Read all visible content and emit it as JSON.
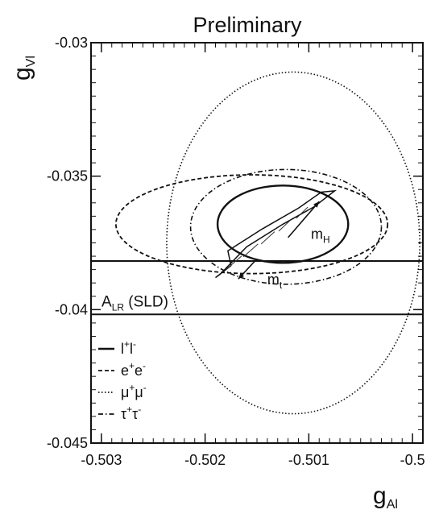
{
  "chart_data": {
    "type": "contour",
    "title": "Preliminary",
    "xlabel": "g",
    "xlabel_sub": "Al",
    "ylabel": "g",
    "ylabel_sub": "Vl",
    "xlim": [
      -0.5031,
      -0.4999
    ],
    "ylim": [
      -0.045,
      -0.03
    ],
    "x_ticks": [
      -0.503,
      -0.502,
      -0.501,
      -0.5
    ],
    "x_tick_labels": [
      "-0.503",
      "-0.502",
      "-0.501",
      "-0.5"
    ],
    "y_ticks": [
      -0.045,
      -0.04,
      -0.035,
      -0.03
    ],
    "y_tick_labels": [
      "-0.045",
      "-0.04",
      "-0.035",
      "-0.03"
    ],
    "ellipses": [
      {
        "name": "l+l-",
        "cx": -0.50125,
        "cy": -0.0368,
        "rx": 0.00063,
        "ry": 0.00145,
        "style": "solid",
        "width": 2.4
      },
      {
        "name": "e+e-",
        "cx": -0.50155,
        "cy": -0.0368,
        "rx": 0.00131,
        "ry": 0.00185,
        "style": "dashed",
        "width": 1.8
      },
      {
        "name": "mu+mu-",
        "cx": -0.50115,
        "cy": -0.0375,
        "rx": 0.00122,
        "ry": 0.0064,
        "style": "dotted",
        "width": 1.6
      },
      {
        "name": "tau+tau-",
        "cx": -0.50122,
        "cy": -0.0369,
        "rx": 0.00092,
        "ry": 0.00215,
        "style": "dashdot",
        "width": 1.6
      }
    ],
    "alr_band": {
      "label": "A",
      "label_sub": "LR",
      "label_suffix": "(SLD)",
      "y_top": -0.03818,
      "y_bottom": -0.04018
    },
    "sm_band": {
      "outline": [
        [
          -0.50185,
          -0.03866
        ],
        [
          -0.5016,
          -0.03765
        ],
        [
          -0.50125,
          -0.0368
        ],
        [
          -0.50095,
          -0.03615
        ],
        [
          -0.50075,
          -0.03555
        ],
        [
          -0.50088,
          -0.0356
        ],
        [
          -0.5011,
          -0.0362
        ],
        [
          -0.50145,
          -0.03698
        ],
        [
          -0.50178,
          -0.0378
        ],
        [
          -0.50175,
          -0.03835
        ],
        [
          -0.5019,
          -0.0388
        ]
      ],
      "mt_arrow": [
        [
          -0.5015,
          -0.0381
        ],
        [
          -0.50168,
          -0.03885
        ]
      ],
      "mh_arrow": [
        [
          -0.5012,
          -0.0373
        ],
        [
          -0.5009,
          -0.03595
        ]
      ],
      "mt_label": {
        "text": "m",
        "sub": "t",
        "x": -0.5014,
        "y": -0.03905
      },
      "mh_label": {
        "text": "m",
        "sub": "H",
        "x": -0.50098,
        "y": -0.03735
      }
    },
    "legend": {
      "placement": "lower-left",
      "items": [
        {
          "label": "l",
          "sup1": "+",
          "label2": "l",
          "sup2": "-",
          "style": "solid"
        },
        {
          "label": "e",
          "sup1": "+",
          "label2": "e",
          "sup2": "-",
          "style": "dashed"
        },
        {
          "label": "μ",
          "sup1": "+",
          "label2": "μ",
          "sup2": "-",
          "style": "dotted"
        },
        {
          "label": "τ",
          "sup1": "+",
          "label2": "τ",
          "sup2": "-",
          "style": "dashdot"
        }
      ]
    },
    "grid": false
  }
}
